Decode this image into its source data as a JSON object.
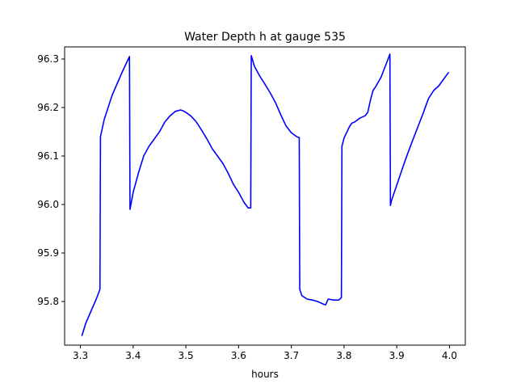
{
  "chart_data": {
    "type": "line",
    "title": "Water Depth h at gauge 535",
    "xlabel": "hours",
    "ylabel": "",
    "xlim": [
      3.27,
      4.03
    ],
    "ylim": [
      95.71,
      96.325
    ],
    "xticks": [
      3.3,
      3.4,
      3.5,
      3.6,
      3.7,
      3.8,
      3.9,
      4.0
    ],
    "xtick_labels": [
      "3.3",
      "3.4",
      "3.5",
      "3.6",
      "3.7",
      "3.8",
      "3.9",
      "4.0"
    ],
    "yticks": [
      95.8,
      95.9,
      96.0,
      96.1,
      96.2,
      96.3
    ],
    "ytick_labels": [
      "95.8",
      "95.9",
      "96.0",
      "96.1",
      "96.2",
      "96.3"
    ],
    "grid": false,
    "series": [
      {
        "color": "#0000ff",
        "x": [
          3.303,
          3.31,
          3.32,
          3.33,
          3.337,
          3.338,
          3.345,
          3.36,
          3.38,
          3.393,
          3.394,
          3.4,
          3.41,
          3.42,
          3.43,
          3.45,
          3.46,
          3.47,
          3.48,
          3.49,
          3.495,
          3.5,
          3.51,
          3.52,
          3.53,
          3.54,
          3.55,
          3.56,
          3.57,
          3.58,
          3.59,
          3.6,
          3.61,
          3.618,
          3.623,
          3.624,
          3.63,
          3.64,
          3.65,
          3.66,
          3.67,
          3.68,
          3.69,
          3.7,
          3.71,
          3.715,
          3.716,
          3.72,
          3.73,
          3.74,
          3.75,
          3.76,
          3.765,
          3.77,
          3.78,
          3.79,
          3.795,
          3.796,
          3.8,
          3.81,
          3.815,
          3.82,
          3.83,
          3.84,
          3.845,
          3.85,
          3.855,
          3.86,
          3.87,
          3.88,
          3.887,
          3.888,
          3.89,
          3.9,
          3.91,
          3.92,
          3.93,
          3.94,
          3.95,
          3.96,
          3.97,
          3.98,
          3.99,
          3.998
        ],
        "y": [
          95.73,
          95.755,
          95.78,
          95.805,
          95.825,
          96.14,
          96.175,
          96.225,
          96.275,
          96.305,
          95.99,
          96.025,
          96.065,
          96.1,
          96.12,
          96.15,
          96.17,
          96.183,
          96.192,
          96.195,
          96.193,
          96.19,
          96.182,
          96.17,
          96.153,
          96.135,
          96.115,
          96.1,
          96.085,
          96.065,
          96.042,
          96.025,
          96.005,
          95.993,
          95.993,
          96.307,
          96.285,
          96.265,
          96.248,
          96.23,
          96.21,
          96.185,
          96.162,
          96.148,
          96.14,
          96.138,
          95.825,
          95.812,
          95.805,
          95.803,
          95.8,
          95.795,
          95.793,
          95.805,
          95.803,
          95.803,
          95.808,
          96.12,
          96.137,
          96.16,
          96.168,
          96.17,
          96.178,
          96.183,
          96.19,
          96.215,
          96.235,
          96.243,
          96.262,
          96.29,
          96.31,
          95.998,
          96.008,
          96.04,
          96.072,
          96.103,
          96.132,
          96.16,
          96.188,
          96.218,
          96.235,
          96.245,
          96.26,
          96.272
        ]
      }
    ]
  }
}
